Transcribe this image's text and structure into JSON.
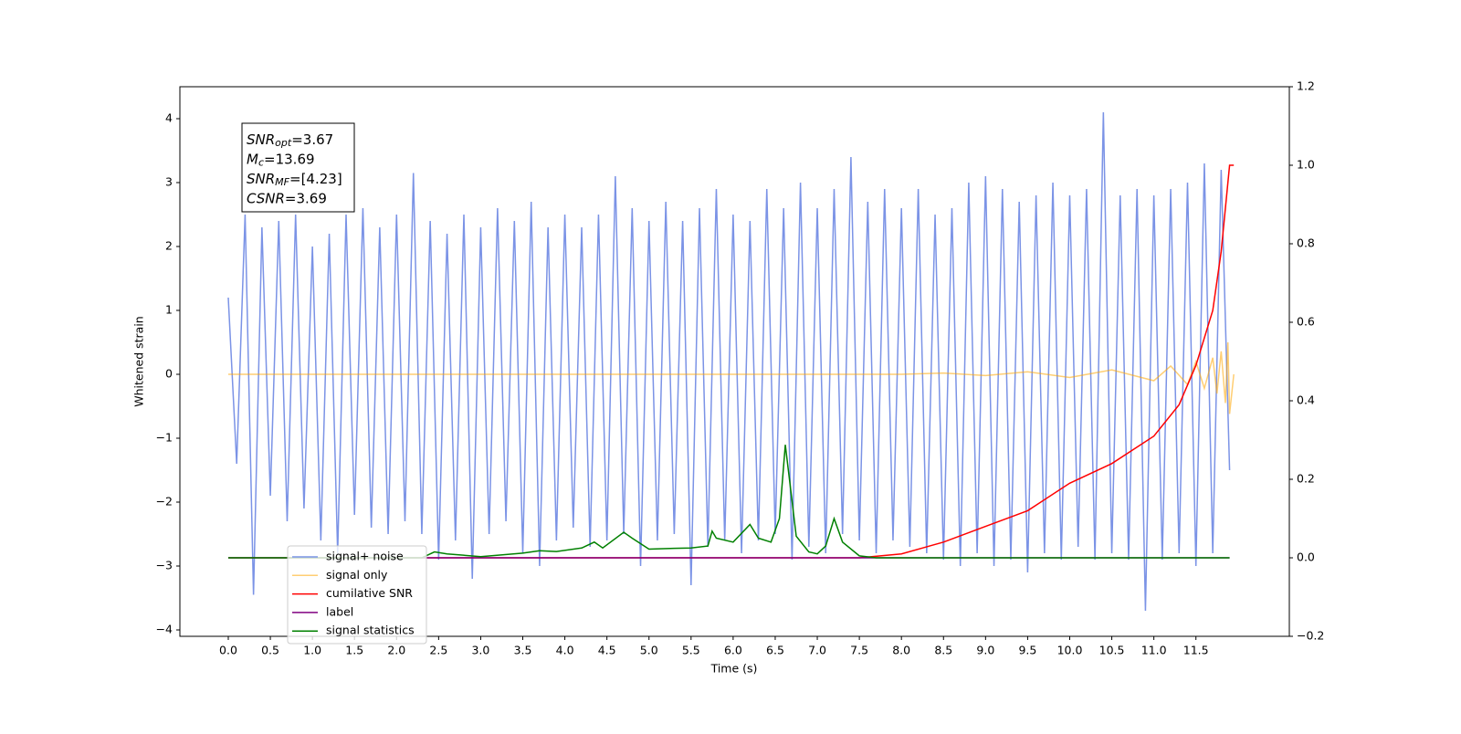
{
  "chart_data": {
    "type": "line",
    "xlabel": "Time (s)",
    "ylabel": "Whitened strain",
    "xlim": [
      -0.575,
      12.61
    ],
    "ylim": [
      -4.1,
      4.5
    ],
    "y2lim": [
      -0.2,
      1.2
    ],
    "xticks": [
      {
        "value": 0,
        "label": "0.0"
      },
      0.5,
      {
        "value": 1,
        "label": "1.0"
      },
      1.5,
      {
        "value": 2,
        "label": "2.0"
      },
      2.5,
      {
        "value": 3,
        "label": "3.0"
      },
      3.5,
      {
        "value": 4,
        "label": "4.0"
      },
      4.5,
      {
        "value": 5,
        "label": "5.0"
      },
      5.5,
      {
        "value": 6,
        "label": "6.0"
      },
      6.5,
      {
        "value": 7,
        "label": "7.0"
      },
      7.5,
      {
        "value": 8,
        "label": "8.0"
      },
      8.5,
      {
        "value": 9,
        "label": "9.0"
      },
      9.5,
      {
        "value": 10,
        "label": "10.0"
      },
      10.5,
      {
        "value": 11,
        "label": "11.0"
      },
      11.5
    ],
    "yticks": [
      {
        "value": -4,
        "label": "−4"
      },
      {
        "value": -3,
        "label": "−3"
      },
      {
        "value": -2,
        "label": "−2"
      },
      {
        "value": -1,
        "label": "−1"
      },
      0,
      1,
      2,
      3,
      4
    ],
    "y2ticks": [
      {
        "value": -0.2,
        "label": "−0.2"
      },
      {
        "value": 0,
        "label": "0.0"
      },
      0.2,
      0.4,
      0.6,
      0.8,
      {
        "value": 1,
        "label": "1.0"
      },
      1.2
    ],
    "legend": "lower left",
    "annotations": [
      {
        "base": "SNR",
        "sub": "opt",
        "rest": "=3.67"
      },
      {
        "base": "M",
        "sub": "c",
        "rest": "=13.69"
      },
      {
        "base": "SNR",
        "sub": "MF",
        "rest": "=[4.23]"
      },
      {
        "base": "CSNR",
        "rest": "=3.69"
      }
    ],
    "series": [
      {
        "name": "signal+ noise",
        "color": "#7b93e6",
        "x": [
          0.0,
          0.1,
          0.2,
          0.3,
          0.4,
          0.5,
          0.6,
          0.7,
          0.8,
          0.9,
          1.0,
          1.1,
          1.2,
          1.3,
          1.4,
          1.5,
          1.6,
          1.7,
          1.8,
          1.9,
          2.0,
          2.1,
          2.2,
          2.3,
          2.4,
          2.5,
          2.6,
          2.7,
          2.8,
          2.9,
          3.0,
          3.1,
          3.2,
          3.3,
          3.4,
          3.5,
          3.6,
          3.7,
          3.8,
          3.9,
          4.0,
          4.1,
          4.2,
          4.3,
          4.4,
          4.5,
          4.6,
          4.7,
          4.8,
          4.9,
          5.0,
          5.1,
          5.2,
          5.3,
          5.4,
          5.5,
          5.6,
          5.7,
          5.8,
          5.9,
          6.0,
          6.1,
          6.2,
          6.3,
          6.4,
          6.5,
          6.6,
          6.7,
          6.8,
          6.9,
          7.0,
          7.1,
          7.2,
          7.3,
          7.4,
          7.5,
          7.6,
          7.7,
          7.8,
          7.9,
          8.0,
          8.1,
          8.2,
          8.3,
          8.4,
          8.5,
          8.6,
          8.7,
          8.8,
          8.9,
          9.0,
          9.1,
          9.2,
          9.3,
          9.4,
          9.5,
          9.6,
          9.7,
          9.8,
          9.9,
          10.0,
          10.1,
          10.2,
          10.3,
          10.4,
          10.5,
          10.6,
          10.7,
          10.8,
          10.9,
          11.0,
          11.1,
          11.2,
          11.3,
          11.4,
          11.5,
          11.6,
          11.7,
          11.8,
          11.9
        ],
        "values": [
          1.2,
          -1.4,
          2.5,
          -3.45,
          2.3,
          -1.9,
          2.4,
          -2.3,
          2.5,
          -2.1,
          2.0,
          -2.6,
          2.2,
          -2.8,
          2.5,
          -2.2,
          2.6,
          -2.4,
          2.3,
          -2.5,
          2.5,
          -2.3,
          3.15,
          -2.5,
          2.4,
          -2.9,
          2.2,
          -2.6,
          2.5,
          -3.2,
          2.3,
          -2.5,
          2.6,
          -2.3,
          2.4,
          -2.8,
          2.7,
          -3.0,
          2.3,
          -2.6,
          2.5,
          -2.4,
          2.3,
          -2.7,
          2.5,
          -2.6,
          3.1,
          -2.5,
          2.6,
          -3.0,
          2.4,
          -2.6,
          2.7,
          -2.5,
          2.4,
          -3.3,
          2.6,
          -2.7,
          2.9,
          -2.6,
          2.5,
          -2.8,
          2.4,
          -2.6,
          2.9,
          -2.5,
          2.6,
          -2.9,
          3.0,
          -2.7,
          2.6,
          -2.8,
          2.9,
          -2.5,
          3.4,
          -2.6,
          2.7,
          -2.8,
          2.9,
          -2.6,
          2.6,
          -2.7,
          2.9,
          -2.8,
          2.5,
          -2.9,
          2.6,
          -3.0,
          3.0,
          -2.8,
          3.1,
          -3.0,
          2.9,
          -2.9,
          2.7,
          -3.1,
          2.8,
          -2.8,
          3.0,
          -2.9,
          2.8,
          -2.7,
          2.9,
          -2.9,
          4.1,
          -2.8,
          2.8,
          -2.9,
          2.9,
          -3.7,
          2.8,
          -2.9,
          2.9,
          -2.8,
          3.0,
          -3.0,
          3.3,
          -2.8,
          3.2,
          -1.5
        ]
      },
      {
        "name": "signal only",
        "color": "#ffa500",
        "x": [
          0,
          8.0,
          8.5,
          9.0,
          9.5,
          10.0,
          10.5,
          11.0,
          11.2,
          11.4,
          11.5,
          11.6,
          11.7,
          11.75,
          11.8,
          11.85,
          11.88,
          11.9,
          11.95
        ],
        "values": [
          0,
          0,
          0.02,
          -0.02,
          0.04,
          -0.05,
          0.07,
          -0.1,
          0.13,
          -0.16,
          0.2,
          -0.22,
          0.26,
          -0.3,
          0.36,
          -0.45,
          0.5,
          -0.62,
          0
        ]
      },
      {
        "name": "cumilative SNR",
        "color": "#ff0000",
        "axis": "y2",
        "x": [
          0,
          7.5,
          8.0,
          8.5,
          9.0,
          9.5,
          10.0,
          10.5,
          11.0,
          11.3,
          11.5,
          11.7,
          11.8,
          11.9,
          11.95
        ],
        "values": [
          0,
          0,
          0.01,
          0.04,
          0.08,
          0.12,
          0.19,
          0.24,
          0.31,
          0.39,
          0.49,
          0.63,
          0.78,
          1.0,
          1.0
        ]
      },
      {
        "name": "label",
        "color": "#800080",
        "axis": "y2",
        "x": [
          0,
          11.9
        ],
        "values": [
          0,
          0
        ]
      },
      {
        "name": "signal statistics",
        "color": "#008000",
        "axis": "y2",
        "x": [
          0,
          2.3,
          2.45,
          2.6,
          3.0,
          3.5,
          3.7,
          3.9,
          4.2,
          4.35,
          4.45,
          4.7,
          4.8,
          5.0,
          5.3,
          5.5,
          5.7,
          5.75,
          5.8,
          6.0,
          6.2,
          6.3,
          6.45,
          6.55,
          6.62,
          6.75,
          6.9,
          7.0,
          7.1,
          7.2,
          7.3,
          7.5,
          7.7,
          8.0,
          11.9
        ],
        "values": [
          0,
          0,
          0.015,
          0.01,
          0.003,
          0.012,
          0.018,
          0.016,
          0.025,
          0.04,
          0.025,
          0.065,
          0.05,
          0.022,
          0.024,
          0.025,
          0.03,
          0.068,
          0.05,
          0.04,
          0.085,
          0.05,
          0.04,
          0.1,
          0.288,
          0.055,
          0.015,
          0.01,
          0.03,
          0.1,
          0.04,
          0.005,
          0,
          0,
          0
        ]
      }
    ]
  }
}
